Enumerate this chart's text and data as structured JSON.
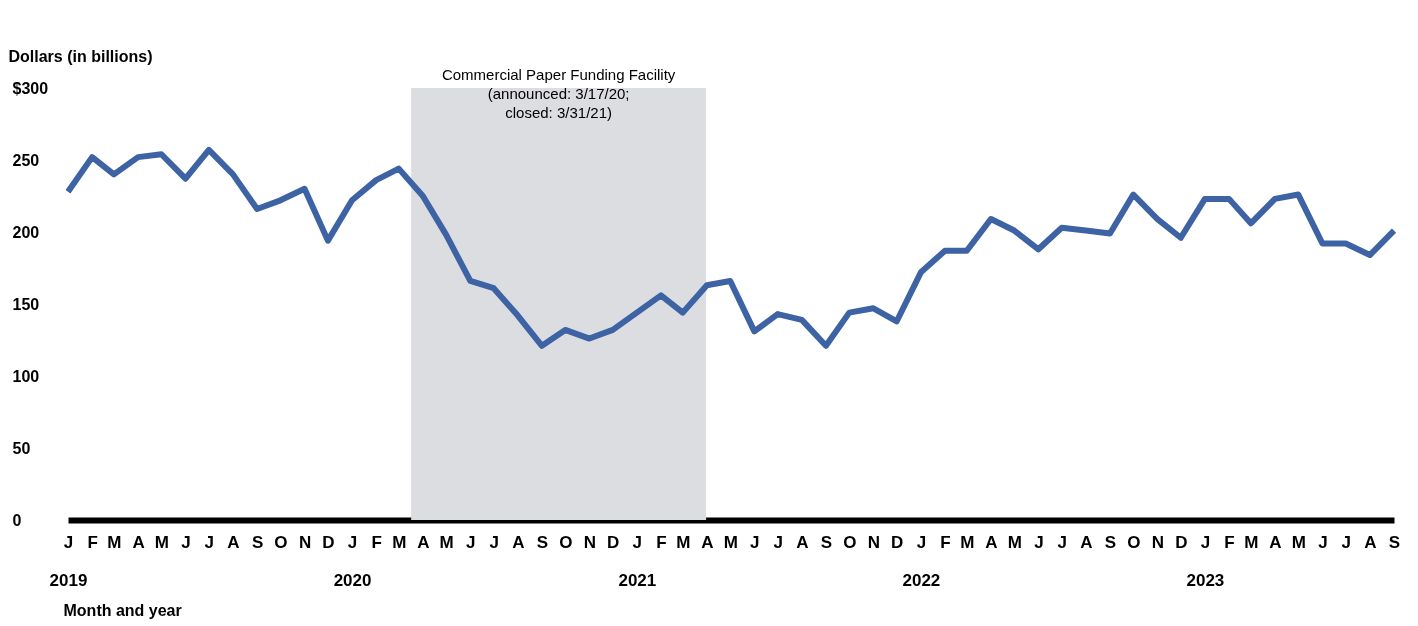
{
  "chart_data": {
    "type": "line",
    "ylabel": "Dollars (in billions)",
    "xlabel": "Month and year",
    "x": [
      "2019-01",
      "2019-02",
      "2019-03",
      "2019-04",
      "2019-05",
      "2019-06",
      "2019-07",
      "2019-08",
      "2019-09",
      "2019-10",
      "2019-11",
      "2019-12",
      "2020-01",
      "2020-02",
      "2020-03",
      "2020-04",
      "2020-05",
      "2020-06",
      "2020-07",
      "2020-08",
      "2020-09",
      "2020-10",
      "2020-11",
      "2020-12",
      "2021-01",
      "2021-02",
      "2021-03",
      "2021-04",
      "2021-05",
      "2021-06",
      "2021-07",
      "2021-08",
      "2021-09",
      "2021-10",
      "2021-11",
      "2021-12",
      "2022-01",
      "2022-02",
      "2022-03",
      "2022-04",
      "2022-05",
      "2022-06",
      "2022-07",
      "2022-08",
      "2022-09",
      "2022-10",
      "2022-11",
      "2022-12",
      "2023-01",
      "2023-02",
      "2023-03",
      "2023-04",
      "2023-05",
      "2023-06",
      "2023-07",
      "2023-08",
      "2023-09"
    ],
    "series": [
      {
        "color": "#3d63a4",
        "values": [
          228,
          252,
          240,
          252,
          254,
          237,
          257,
          240,
          216,
          222,
          230,
          194,
          222,
          236,
          244,
          225,
          198,
          166,
          161,
          142,
          121,
          132,
          126,
          132,
          144,
          156,
          144,
          163,
          166,
          131,
          143,
          139,
          121,
          144,
          147,
          138,
          172,
          187,
          187,
          209,
          201,
          188,
          203,
          201,
          199,
          226,
          209,
          196,
          223,
          223,
          206,
          223,
          226,
          192,
          192,
          184,
          201
        ]
      }
    ],
    "xlim": [
      "2019-01",
      "2023-09"
    ],
    "xticks": [
      {
        "value": "2019-01",
        "label": "J\n2019"
      },
      {
        "value": "2019-02",
        "label": "F"
      },
      {
        "value": "2019-03",
        "label": "M"
      },
      {
        "value": "2019-04",
        "label": "A"
      },
      {
        "value": "2019-05",
        "label": "M"
      },
      {
        "value": "2019-06",
        "label": "J"
      },
      {
        "value": "2019-07",
        "label": "J"
      },
      {
        "value": "2019-08",
        "label": "A"
      },
      {
        "value": "2019-09",
        "label": "S"
      },
      {
        "value": "2019-10",
        "label": "O"
      },
      {
        "value": "2019-11",
        "label": "N"
      },
      {
        "value": "2019-12",
        "label": "D"
      },
      {
        "value": "2020-01",
        "label": "J\n2020"
      },
      {
        "value": "2020-02",
        "label": "F"
      },
      {
        "value": "2020-03",
        "label": "M"
      },
      {
        "value": "2020-04",
        "label": "A"
      },
      {
        "value": "2020-05",
        "label": "M"
      },
      {
        "value": "2020-06",
        "label": "J"
      },
      {
        "value": "2020-07",
        "label": "J"
      },
      {
        "value": "2020-08",
        "label": "A"
      },
      {
        "value": "2020-09",
        "label": "S"
      },
      {
        "value": "2020-10",
        "label": "O"
      },
      {
        "value": "2020-11",
        "label": "N"
      },
      {
        "value": "2020-12",
        "label": "D"
      },
      {
        "value": "2021-01",
        "label": "J\n2021"
      },
      {
        "value": "2021-02",
        "label": "F"
      },
      {
        "value": "2021-03",
        "label": "M"
      },
      {
        "value": "2021-04",
        "label": "A"
      },
      {
        "value": "2021-05",
        "label": "M"
      },
      {
        "value": "2021-06",
        "label": "J"
      },
      {
        "value": "2021-07",
        "label": "J"
      },
      {
        "value": "2021-08",
        "label": "A"
      },
      {
        "value": "2021-09",
        "label": "S"
      },
      {
        "value": "2021-10",
        "label": "O"
      },
      {
        "value": "2021-11",
        "label": "N"
      },
      {
        "value": "2021-12",
        "label": "D"
      },
      {
        "value": "2022-01",
        "label": "J\n2022"
      },
      {
        "value": "2022-02",
        "label": "F"
      },
      {
        "value": "2022-03",
        "label": "M"
      },
      {
        "value": "2022-04",
        "label": "A"
      },
      {
        "value": "2022-05",
        "label": "M"
      },
      {
        "value": "2022-06",
        "label": "J"
      },
      {
        "value": "2022-07",
        "label": "J"
      },
      {
        "value": "2022-08",
        "label": "A"
      },
      {
        "value": "2022-09",
        "label": "S"
      },
      {
        "value": "2022-10",
        "label": "O"
      },
      {
        "value": "2022-11",
        "label": "N"
      },
      {
        "value": "2022-12",
        "label": "D"
      },
      {
        "value": "2023-01",
        "label": "J\n2023"
      },
      {
        "value": "2023-02",
        "label": "F"
      },
      {
        "value": "2023-03",
        "label": "M"
      },
      {
        "value": "2023-04",
        "label": "A"
      },
      {
        "value": "2023-05",
        "label": "M"
      },
      {
        "value": "2023-06",
        "label": "J"
      },
      {
        "value": "2023-07",
        "label": "J"
      },
      {
        "value": "2023-08",
        "label": "A"
      },
      {
        "value": "2023-09",
        "label": "S"
      }
    ],
    "ylim": [
      0,
      300
    ],
    "yticks": [
      0,
      50,
      100,
      150,
      200,
      250,
      {
        "value": 300,
        "label": "$300"
      }
    ],
    "bands": [
      {
        "axis": "x",
        "from": "2020-03-17",
        "to": "2021-03-31",
        "color": "#dcdde0",
        "label": "Commercial Paper Funding Facility\n(announced: 3/17/20;\nclosed: 3/31/21)"
      }
    ],
    "grid": false,
    "marker": "none",
    "line_style": "solid"
  }
}
